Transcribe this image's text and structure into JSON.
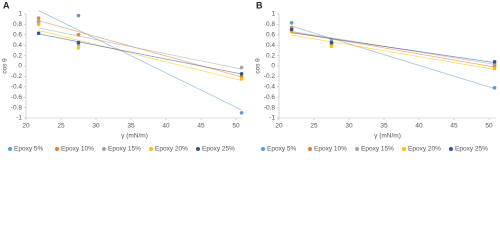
{
  "chart_data": [
    {
      "type": "scatter",
      "label": "A",
      "xlabel": "γ (mN/m)",
      "ylabel": "cos θ",
      "x": [
        21.8,
        27.5,
        50.8
      ],
      "xlim": [
        20,
        51
      ],
      "xticks": [
        20,
        25,
        30,
        35,
        40,
        45,
        50
      ],
      "ylim": [
        -1,
        1
      ],
      "yticks": [
        -1,
        -0.8,
        -0.6,
        -0.4,
        -0.2,
        0,
        0.2,
        0.4,
        0.6,
        0.8,
        1
      ],
      "trendline": true,
      "legend": "bottom",
      "series": [
        {
          "name": "Epoxy 5%",
          "color": "#5b9bd5",
          "values": [
            0.84,
            0.97,
            -0.9
          ]
        },
        {
          "name": "Epoxy 10%",
          "color": "#ed7d31",
          "values": [
            0.92,
            0.6,
            -0.2
          ]
        },
        {
          "name": "Epoxy 15%",
          "color": "#a5a5a5",
          "values": [
            0.86,
            0.42,
            -0.03
          ]
        },
        {
          "name": "Epoxy 20%",
          "color": "#ffc000",
          "values": [
            0.8,
            0.35,
            -0.25
          ]
        },
        {
          "name": "Epoxy 25%",
          "color": "#2f5597",
          "values": [
            0.63,
            0.45,
            -0.15
          ]
        }
      ]
    },
    {
      "type": "scatter",
      "label": "B",
      "xlabel": "γ (mN/m)",
      "ylabel": "cos θ",
      "x": [
        21.8,
        27.5,
        50.8
      ],
      "xlim": [
        20,
        51
      ],
      "xticks": [
        20,
        25,
        30,
        35,
        40,
        45,
        50
      ],
      "ylim": [
        -1,
        1
      ],
      "yticks": [
        -1,
        -0.8,
        -0.6,
        -0.4,
        -0.2,
        0,
        0.2,
        0.4,
        0.6,
        0.8,
        1
      ],
      "trendline": true,
      "legend": "bottom",
      "series": [
        {
          "name": "Epoxy 5%",
          "color": "#5b9bd5",
          "values": [
            0.83,
            0.45,
            -0.42
          ]
        },
        {
          "name": "Epoxy 10%",
          "color": "#ed7d31",
          "values": [
            0.74,
            0.42,
            0
          ]
        },
        {
          "name": "Epoxy 15%",
          "color": "#a5a5a5",
          "values": [
            0.7,
            0.5,
            0.04
          ]
        },
        {
          "name": "Epoxy 20%",
          "color": "#ffc000",
          "values": [
            0.66,
            0.38,
            -0.05
          ]
        },
        {
          "name": "Epoxy 25%",
          "color": "#2f5597",
          "values": [
            0.7,
            0.45,
            0.08
          ]
        }
      ]
    }
  ]
}
